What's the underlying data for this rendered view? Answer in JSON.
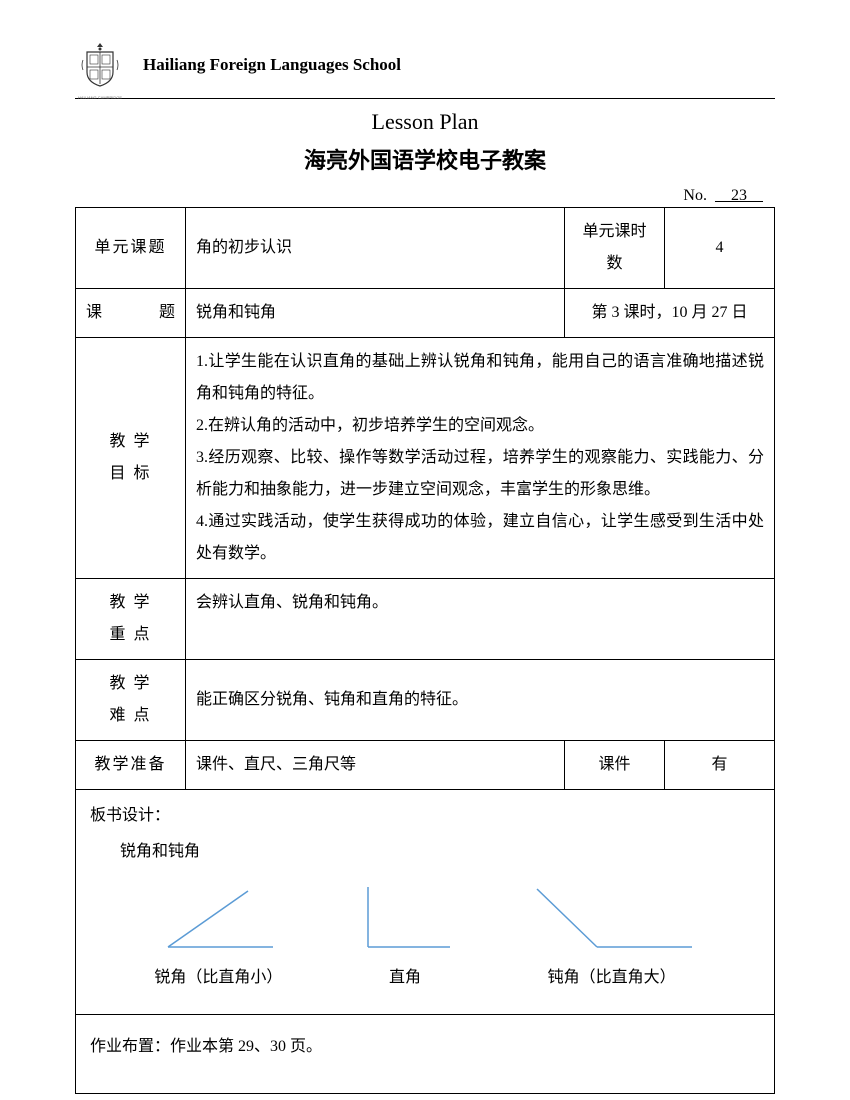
{
  "header": {
    "school_name": "Hailiang Foreign Languages School",
    "logo_caption": "HAILIANG CAMBRIDGE"
  },
  "titles": {
    "en": "Lesson Plan",
    "cn": "海亮外国语学校电子教案"
  },
  "no": {
    "label": "No.",
    "value": "23"
  },
  "rows": {
    "unit_topic_label": "单元课题",
    "unit_topic_value": "角的初步认识",
    "unit_hours_label": "单元课时数",
    "unit_hours_value": "4",
    "lesson_label": "课　　题",
    "lesson_value": "锐角和钝角",
    "lesson_date": "第 3 课时，10 月 27 日",
    "objectives_label_1": "教 学",
    "objectives_label_2": "目 标",
    "objectives_text": "1.让学生能在认识直角的基础上辨认锐角和钝角，能用自己的语言准确地描述锐角和钝角的特征。\n2.在辨认角的活动中，初步培养学生的空间观念。\n3.经历观察、比较、操作等数学活动过程，培养学生的观察能力、实践能力、分析能力和抽象能力，进一步建立空间观念，丰富学生的形象思维。\n4.通过实践活动，使学生获得成功的体验，建立自信心，让学生感受到生活中处处有数学。",
    "keypoint_label_1": "教 学",
    "keypoint_label_2": "重 点",
    "keypoint_value": "会辨认直角、锐角和钝角。",
    "difficulty_label_1": "教 学",
    "difficulty_label_2": "难 点",
    "difficulty_value": "能正确区分锐角、钝角和直角的特征。",
    "prep_label": "教学准备",
    "prep_value": "课件、直尺、三角尺等",
    "courseware_label": "课件",
    "courseware_value": "有"
  },
  "board": {
    "title": "板书设计：",
    "subtitle": "锐角和钝角",
    "angles": [
      {
        "caption": "锐角（比直角小）",
        "stroke": "#5b9bd5"
      },
      {
        "caption": "直角",
        "stroke": "#5b9bd5"
      },
      {
        "caption": "钝角（比直角大）",
        "stroke": "#5b9bd5"
      }
    ]
  },
  "homework": {
    "text": "作业布置：作业本第 29、30 页。"
  },
  "colors": {
    "text": "#000000",
    "border": "#000000",
    "angle_stroke": "#5b9bd5",
    "background": "#ffffff"
  }
}
